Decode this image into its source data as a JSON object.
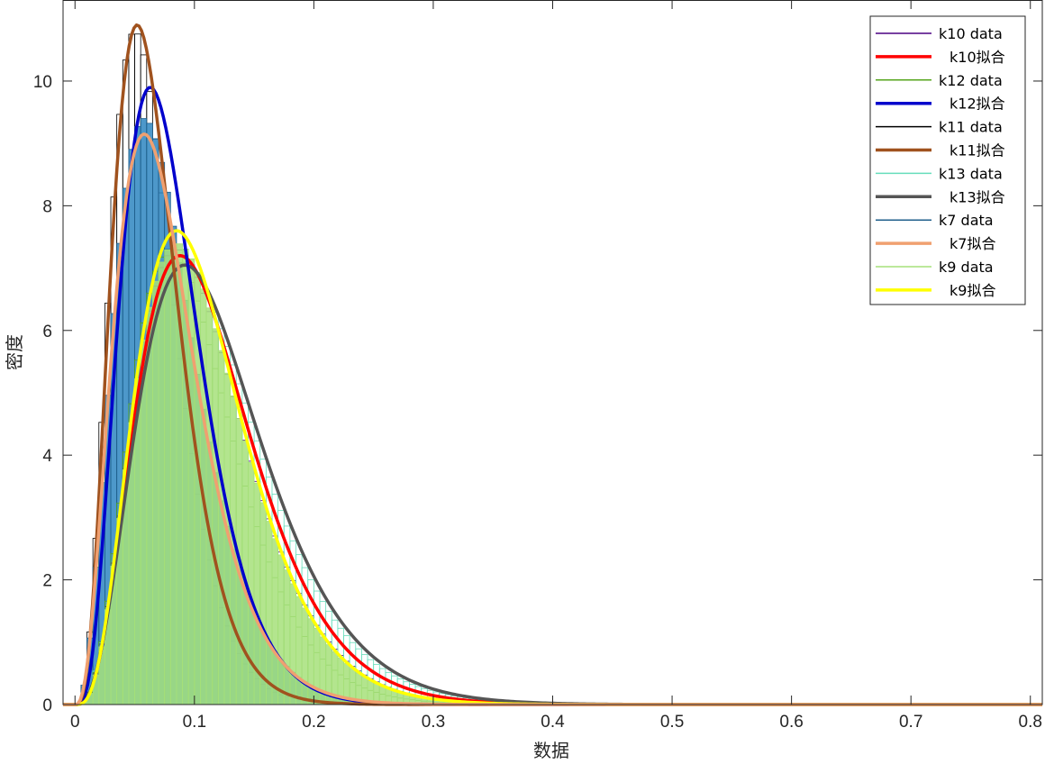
{
  "chart_data": {
    "type": "histogram",
    "title": "",
    "xlabel": "数据",
    "ylabel": "密度",
    "xlim": [
      -0.01,
      0.81
    ],
    "ylim": [
      0,
      11.3
    ],
    "xticks": [
      0,
      0.1,
      0.2,
      0.3,
      0.4,
      0.5,
      0.6,
      0.7,
      0.8
    ],
    "xtick_labels": [
      "0",
      "0.1",
      "0.2",
      "0.3",
      "0.4",
      "0.5",
      "0.6",
      "0.7",
      "0.8"
    ],
    "yticks": [
      0,
      2,
      4,
      6,
      8,
      10
    ],
    "ytick_labels": [
      "0",
      "2",
      "4",
      "6",
      "8",
      "10"
    ],
    "grid": false,
    "legend_position": "top-right",
    "bin_width": 0.005,
    "series": [
      {
        "name": "k10 data",
        "kind": "hist",
        "color": "#4b0082",
        "fill": "none",
        "mode_x": 0.085,
        "peak": 7.3,
        "shape": 3.4
      },
      {
        "name": "k10拟合",
        "kind": "fit",
        "color": "#ff0000",
        "mode_x": 0.088,
        "peak": 7.2,
        "shape": 3.3
      },
      {
        "name": "k12 data",
        "kind": "hist",
        "color": "#55a51c",
        "fill": "none",
        "mode_x": 0.08,
        "peak": 7.3,
        "shape": 3.6
      },
      {
        "name": "k12拟合",
        "kind": "fit",
        "color": "#0000cc",
        "mode_x": 0.063,
        "peak": 9.9,
        "shape": 3.6
      },
      {
        "name": "k11 data",
        "kind": "hist",
        "color": "#000000",
        "fill": "none",
        "mode_x": 0.05,
        "peak": 10.8,
        "shape": 3.5
      },
      {
        "name": "k11拟合",
        "kind": "fit",
        "color": "#a0521e",
        "mode_x": 0.052,
        "peak": 10.9,
        "shape": 3.5
      },
      {
        "name": "k13 data",
        "kind": "hist",
        "color": "#66ddbb",
        "fill": "none",
        "mode_x": 0.09,
        "peak": 7.1,
        "shape": 3.1
      },
      {
        "name": "k13拟合",
        "kind": "fit",
        "color": "#555555",
        "mode_x": 0.092,
        "peak": 7.05,
        "shape": 3.1
      },
      {
        "name": "k7 data",
        "kind": "hist",
        "color": "#1f5f8b",
        "fill": "#2e86c1",
        "mode_x": 0.058,
        "peak": 9.4,
        "shape": 2.9
      },
      {
        "name": "k7拟合",
        "kind": "fit",
        "color": "#f0a070",
        "mode_x": 0.058,
        "peak": 9.15,
        "shape": 2.9
      },
      {
        "name": "k9 data",
        "kind": "hist",
        "color": "#a6e07a",
        "fill": "#a6e07a",
        "mode_x": 0.085,
        "peak": 7.4,
        "shape": 3.5
      },
      {
        "name": "k9拟合",
        "kind": "fit",
        "color": "#ffff00",
        "mode_x": 0.085,
        "peak": 7.6,
        "shape": 3.5
      }
    ]
  }
}
